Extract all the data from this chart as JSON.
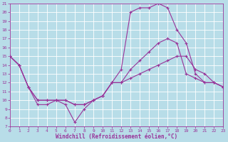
{
  "xlabel": "Windchill (Refroidissement éolien,°C)",
  "background_color": "#b8dde8",
  "grid_color": "#ffffff",
  "line_color": "#993399",
  "xlim": [
    0,
    23
  ],
  "ylim": [
    7,
    21
  ],
  "xticks": [
    0,
    1,
    2,
    3,
    4,
    5,
    6,
    7,
    8,
    9,
    10,
    11,
    12,
    13,
    14,
    15,
    16,
    17,
    18,
    19,
    20,
    21,
    22,
    23
  ],
  "yticks": [
    7,
    8,
    9,
    10,
    11,
    12,
    13,
    14,
    15,
    16,
    17,
    18,
    19,
    20,
    21
  ],
  "series1_x": [
    0,
    1,
    2,
    3,
    4,
    5,
    6,
    7,
    8,
    9,
    10,
    11,
    12,
    13,
    14,
    15,
    16,
    17,
    18,
    19,
    20,
    21,
    22,
    23
  ],
  "series1_y": [
    15,
    14,
    11.5,
    9.5,
    9.5,
    10,
    9.5,
    7.5,
    9,
    10,
    10.5,
    12,
    13.5,
    20,
    20.5,
    20.5,
    21,
    20.5,
    18,
    16.5,
    13,
    12,
    12,
    11.5
  ],
  "series2_x": [
    0,
    1,
    2,
    3,
    4,
    5,
    6,
    7,
    8,
    9,
    10,
    11,
    12,
    13,
    14,
    15,
    16,
    17,
    18,
    19,
    20,
    21,
    22,
    23
  ],
  "series2_y": [
    15,
    14,
    11.5,
    10,
    10,
    10,
    10,
    9.5,
    9.5,
    10,
    10.5,
    12,
    12,
    13.5,
    14.5,
    15.5,
    16.5,
    17,
    16.5,
    13,
    12.5,
    12,
    12,
    11.5
  ],
  "series3_x": [
    0,
    1,
    2,
    3,
    4,
    5,
    6,
    7,
    8,
    9,
    10,
    11,
    12,
    13,
    14,
    15,
    16,
    17,
    18,
    19,
    20,
    21,
    22,
    23
  ],
  "series3_y": [
    15,
    14,
    11.5,
    10,
    10,
    10,
    10,
    9.5,
    9.5,
    10,
    10.5,
    12,
    12,
    12.5,
    13,
    13.5,
    14,
    14.5,
    15,
    15,
    13.5,
    13,
    12,
    11.5
  ]
}
